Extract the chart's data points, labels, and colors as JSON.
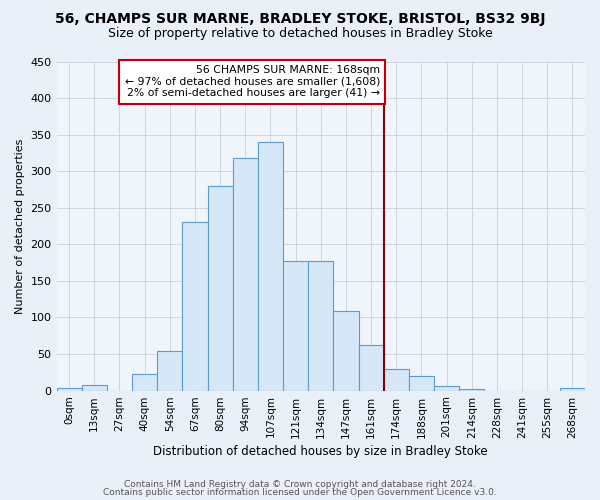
{
  "title": "56, CHAMPS SUR MARNE, BRADLEY STOKE, BRISTOL, BS32 9BJ",
  "subtitle": "Size of property relative to detached houses in Bradley Stoke",
  "xlabel": "Distribution of detached houses by size in Bradley Stoke",
  "ylabel": "Number of detached properties",
  "footer_lines": [
    "Contains HM Land Registry data © Crown copyright and database right 2024.",
    "Contains public sector information licensed under the Open Government Licence v3.0."
  ],
  "bar_labels": [
    "0sqm",
    "13sqm",
    "27sqm",
    "40sqm",
    "54sqm",
    "67sqm",
    "80sqm",
    "94sqm",
    "107sqm",
    "121sqm",
    "134sqm",
    "147sqm",
    "161sqm",
    "174sqm",
    "188sqm",
    "201sqm",
    "214sqm",
    "228sqm",
    "241sqm",
    "255sqm",
    "268sqm"
  ],
  "bar_values": [
    3,
    7,
    0,
    22,
    54,
    230,
    280,
    318,
    340,
    177,
    177,
    109,
    62,
    30,
    20,
    6,
    2,
    0,
    0,
    0,
    3
  ],
  "bar_color": "#d6e8f7",
  "bar_edge_color": "#5b9bd5",
  "annotation_line1": "56 CHAMPS SUR MARNE: 168sqm",
  "annotation_line2": "← 97% of detached houses are smaller (1,608)",
  "annotation_line3": "2% of semi-detached houses are larger (41) →",
  "annotation_box_edge": "#c00000",
  "vline_color": "#8b0000",
  "vline_x_index": 13,
  "ylim": [
    0,
    450
  ],
  "yticks": [
    0,
    50,
    100,
    150,
    200,
    250,
    300,
    350,
    400,
    450
  ],
  "background_color": "#eaf0f8",
  "plot_bg_color": "#f0f5fb",
  "grid_color": "#c8d0dc",
  "title_fontsize": 10,
  "subtitle_fontsize": 9
}
